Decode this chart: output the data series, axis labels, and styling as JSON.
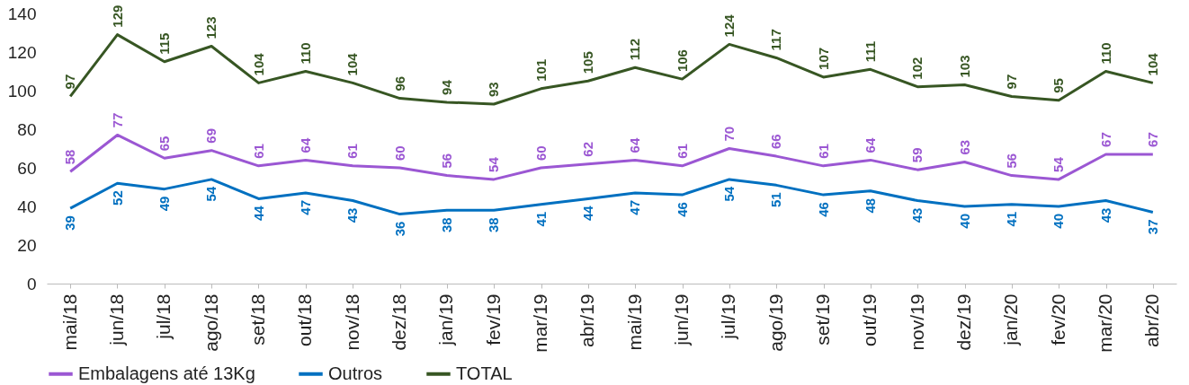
{
  "chart_data": {
    "type": "line",
    "categories": [
      "mai/18",
      "jun/18",
      "jul/18",
      "ago/18",
      "set/18",
      "out/18",
      "nov/18",
      "dez/18",
      "jan/19",
      "fev/19",
      "mar/19",
      "abr/19",
      "mai/19",
      "jun/19",
      "jul/19",
      "ago/19",
      "set/19",
      "out/19",
      "nov/19",
      "dez/19",
      "jan/20",
      "fev/20",
      "mar/20",
      "abr/20"
    ],
    "series": [
      {
        "name": "Embalagens até 13Kg",
        "color": "#9b57d3",
        "values": [
          58,
          77,
          65,
          69,
          61,
          64,
          61,
          60,
          56,
          54,
          60,
          62,
          64,
          61,
          70,
          66,
          61,
          64,
          59,
          63,
          56,
          54,
          67,
          67
        ]
      },
      {
        "name": "Outros",
        "color": "#0070c0",
        "values": [
          39,
          52,
          49,
          54,
          44,
          47,
          43,
          36,
          38,
          38,
          41,
          44,
          47,
          46,
          54,
          51,
          46,
          48,
          43,
          40,
          41,
          40,
          43,
          37
        ]
      },
      {
        "name": "TOTAL",
        "color": "#375623",
        "values": [
          97,
          129,
          115,
          123,
          104,
          110,
          104,
          96,
          94,
          93,
          101,
          105,
          112,
          106,
          124,
          117,
          107,
          111,
          102,
          103,
          97,
          95,
          110,
          104
        ]
      }
    ],
    "ylim": [
      0,
      140
    ],
    "yticks": [
      0,
      20,
      40,
      60,
      80,
      100,
      120,
      140
    ],
    "grid": false,
    "legend": "bottom",
    "data_labels": true,
    "marker": "none",
    "line_style": "solid"
  }
}
